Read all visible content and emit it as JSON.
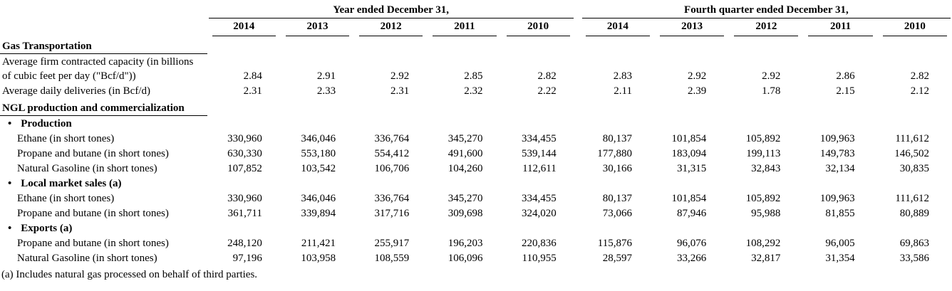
{
  "table": {
    "bullet_char": "•",
    "col_groups": [
      {
        "label": "Year ended December 31,",
        "years": [
          "2014",
          "2013",
          "2012",
          "2011",
          "2010"
        ]
      },
      {
        "label": "Fourth quarter ended December 31,",
        "years": [
          "2014",
          "2013",
          "2012",
          "2011",
          "2010"
        ]
      }
    ],
    "rows": [
      {
        "type": "section",
        "label": "Gas Transportation"
      },
      {
        "type": "data",
        "indent": false,
        "label": "Average firm contracted capacity (in billions of cubic feet per day (\"Bcf/d\"))",
        "year": [
          "2.84",
          "2.91",
          "2.92",
          "2.85",
          "2.82"
        ],
        "quarter": [
          "2.83",
          "2.92",
          "2.92",
          "2.86",
          "2.82"
        ]
      },
      {
        "type": "data",
        "indent": false,
        "label": "Average daily deliveries (in Bcf/d)",
        "year": [
          "2.31",
          "2.33",
          "2.31",
          "2.32",
          "2.22"
        ],
        "quarter": [
          "2.11",
          "2.39",
          "1.78",
          "2.15",
          "2.12"
        ]
      },
      {
        "type": "section",
        "label": "NGL production and commercialization"
      },
      {
        "type": "bullet",
        "label": "Production"
      },
      {
        "type": "data",
        "indent": true,
        "label": "Ethane (in short tones)",
        "year": [
          "330,960",
          "346,046",
          "336,764",
          "345,270",
          "334,455"
        ],
        "quarter": [
          "80,137",
          "101,854",
          "105,892",
          "109,963",
          "111,612"
        ]
      },
      {
        "type": "data",
        "indent": true,
        "label": "Propane and butane (in short tones)",
        "year": [
          "630,330",
          "553,180",
          "554,412",
          "491,600",
          "539,144"
        ],
        "quarter": [
          "177,880",
          "183,094",
          "199,113",
          "149,783",
          "146,502"
        ]
      },
      {
        "type": "data",
        "indent": true,
        "label": "Natural Gasoline (in short tones)",
        "year": [
          "107,852",
          "103,542",
          "106,706",
          "104,260",
          "112,611"
        ],
        "quarter": [
          "30,166",
          "31,315",
          "32,843",
          "32,134",
          "30,835"
        ]
      },
      {
        "type": "bullet",
        "label": "Local market sales (a)"
      },
      {
        "type": "data",
        "indent": true,
        "label": "Ethane (in short tones)",
        "year": [
          "330,960",
          "346,046",
          "336,764",
          "345,270",
          "334,455"
        ],
        "quarter": [
          "80,137",
          "101,854",
          "105,892",
          "109,963",
          "111,612"
        ]
      },
      {
        "type": "data",
        "indent": true,
        "label": "Propane and butane (in short tones)",
        "year": [
          "361,711",
          "339,894",
          "317,716",
          "309,698",
          "324,020"
        ],
        "quarter": [
          "73,066",
          "87,946",
          "95,988",
          "81,855",
          "80,889"
        ]
      },
      {
        "type": "bullet",
        "label": "Exports (a)"
      },
      {
        "type": "data",
        "indent": true,
        "label": "Propane and butane (in short tones)",
        "year": [
          "248,120",
          "211,421",
          "255,917",
          "196,203",
          "220,836"
        ],
        "quarter": [
          "115,876",
          "96,076",
          "108,292",
          "96,005",
          "69,863"
        ]
      },
      {
        "type": "data",
        "indent": true,
        "label": "Natural Gasoline (in short tones)",
        "year": [
          "97,196",
          "103,958",
          "108,559",
          "106,096",
          "110,955"
        ],
        "quarter": [
          "28,597",
          "33,266",
          "32,817",
          "31,354",
          "33,586"
        ]
      }
    ],
    "footnote": "(a) Includes natural gas processed on behalf of third parties."
  }
}
